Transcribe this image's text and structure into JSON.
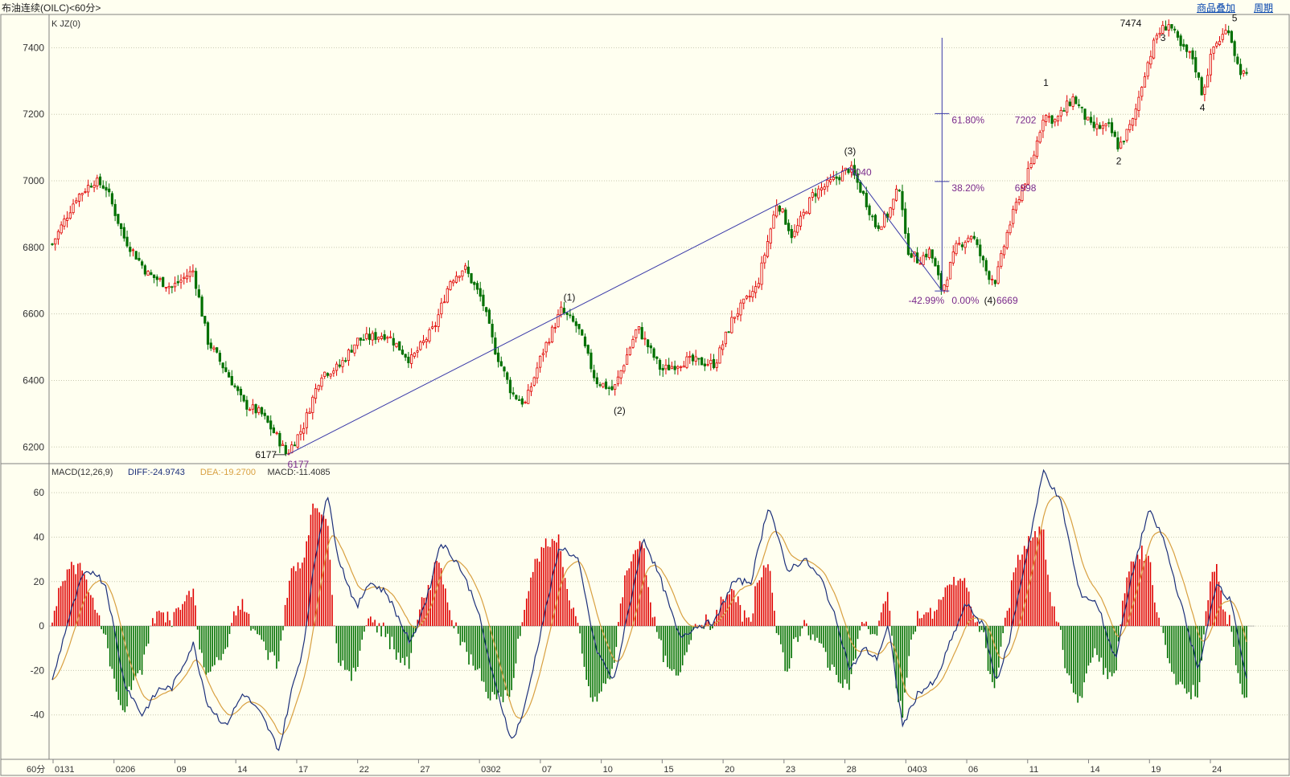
{
  "window": {
    "title": "布油连续(OILC)<60分>",
    "buttons": [
      "商品叠加",
      "周期"
    ]
  },
  "colors": {
    "bg": "#FFFFF0",
    "up": "#E00000",
    "down": "#007000",
    "diff": "#1B2F7A",
    "dea": "#D8A040",
    "annotation": "#7A2A8C",
    "grid": "#C8C8B0"
  },
  "chart_data": [
    {
      "type": "candlestick",
      "title": "K JZ(0)",
      "period_label": "60分",
      "ylim": [
        6150,
        7500
      ],
      "yticks": [
        6200,
        6400,
        6600,
        6800,
        7000,
        7200,
        7400
      ],
      "grid": true,
      "x_labels": [
        "0131",
        "0206",
        "09",
        "14",
        "17",
        "22",
        "27",
        "0302",
        "07",
        "10",
        "15",
        "20",
        "23",
        "28",
        "0403",
        "06",
        "11",
        "14",
        "19",
        "24"
      ],
      "price_path": [
        {
          "x": 0,
          "y": 6810
        },
        {
          "x": 0.02,
          "y": 6950
        },
        {
          "x": 0.035,
          "y": 7000
        },
        {
          "x": 0.045,
          "y": 6980
        },
        {
          "x": 0.06,
          "y": 6830
        },
        {
          "x": 0.08,
          "y": 6720
        },
        {
          "x": 0.1,
          "y": 6680
        },
        {
          "x": 0.118,
          "y": 6730
        },
        {
          "x": 0.13,
          "y": 6520
        },
        {
          "x": 0.15,
          "y": 6400
        },
        {
          "x": 0.16,
          "y": 6330
        },
        {
          "x": 0.175,
          "y": 6300
        },
        {
          "x": 0.19,
          "y": 6220
        },
        {
          "x": 0.196,
          "y": 6177
        },
        {
          "x": 0.21,
          "y": 6260
        },
        {
          "x": 0.225,
          "y": 6420
        },
        {
          "x": 0.24,
          "y": 6440
        },
        {
          "x": 0.255,
          "y": 6520
        },
        {
          "x": 0.28,
          "y": 6540
        },
        {
          "x": 0.3,
          "y": 6460
        },
        {
          "x": 0.32,
          "y": 6560
        },
        {
          "x": 0.333,
          "y": 6700
        },
        {
          "x": 0.345,
          "y": 6740
        },
        {
          "x": 0.36,
          "y": 6640
        },
        {
          "x": 0.37,
          "y": 6500
        },
        {
          "x": 0.385,
          "y": 6360
        },
        {
          "x": 0.396,
          "y": 6330
        },
        {
          "x": 0.41,
          "y": 6480
        },
        {
          "x": 0.426,
          "y": 6610
        },
        {
          "x": 0.44,
          "y": 6560
        },
        {
          "x": 0.455,
          "y": 6400
        },
        {
          "x": 0.47,
          "y": 6370
        },
        {
          "x": 0.49,
          "y": 6560
        },
        {
          "x": 0.51,
          "y": 6430
        },
        {
          "x": 0.53,
          "y": 6460
        },
        {
          "x": 0.555,
          "y": 6450
        },
        {
          "x": 0.57,
          "y": 6590
        },
        {
          "x": 0.59,
          "y": 6680
        },
        {
          "x": 0.607,
          "y": 6940
        },
        {
          "x": 0.62,
          "y": 6830
        },
        {
          "x": 0.637,
          "y": 6960
        },
        {
          "x": 0.65,
          "y": 6990
        },
        {
          "x": 0.668,
          "y": 7040
        },
        {
          "x": 0.68,
          "y": 6950
        },
        {
          "x": 0.69,
          "y": 6860
        },
        {
          "x": 0.7,
          "y": 6900
        },
        {
          "x": 0.71,
          "y": 6990
        },
        {
          "x": 0.715,
          "y": 6800
        },
        {
          "x": 0.725,
          "y": 6760
        },
        {
          "x": 0.735,
          "y": 6790
        },
        {
          "x": 0.745,
          "y": 6669
        },
        {
          "x": 0.757,
          "y": 6800
        },
        {
          "x": 0.77,
          "y": 6840
        },
        {
          "x": 0.783,
          "y": 6720
        },
        {
          "x": 0.79,
          "y": 6700
        },
        {
          "x": 0.8,
          "y": 6850
        },
        {
          "x": 0.81,
          "y": 6960
        },
        {
          "x": 0.82,
          "y": 7050
        },
        {
          "x": 0.83,
          "y": 7200
        },
        {
          "x": 0.84,
          "y": 7180
        },
        {
          "x": 0.855,
          "y": 7250
        },
        {
          "x": 0.87,
          "y": 7160
        },
        {
          "x": 0.885,
          "y": 7160
        },
        {
          "x": 0.893,
          "y": 7100
        },
        {
          "x": 0.905,
          "y": 7180
        },
        {
          "x": 0.915,
          "y": 7330
        },
        {
          "x": 0.925,
          "y": 7440
        },
        {
          "x": 0.935,
          "y": 7474
        },
        {
          "x": 0.945,
          "y": 7400
        },
        {
          "x": 0.955,
          "y": 7370
        },
        {
          "x": 0.963,
          "y": 7260
        },
        {
          "x": 0.972,
          "y": 7400
        },
        {
          "x": 0.985,
          "y": 7460
        },
        {
          "x": 0.993,
          "y": 7340
        },
        {
          "x": 1.0,
          "y": 7310
        }
      ],
      "annotations": [
        {
          "text": "6177",
          "x": 0.196,
          "y": 6177,
          "kind": "low-marker"
        },
        {
          "text": "6177",
          "x": 0.197,
          "y": 6177,
          "kind": "low-label"
        },
        {
          "text": "(1)",
          "x": 0.433,
          "y": 6640
        },
        {
          "text": "(2)",
          "x": 0.475,
          "y": 6300
        },
        {
          "text": "(3)",
          "x": 0.668,
          "y": 7080
        },
        {
          "text": "7040",
          "x": 0.668,
          "y": 7040,
          "kind": "high-label"
        },
        {
          "text": "-42.99%",
          "x": 0.72,
          "y": 6669
        },
        {
          "text": "0.00%",
          "x": 0.772,
          "y": 6669
        },
        {
          "text": "(4)",
          "x": 0.795,
          "y": 6669
        },
        {
          "text": "6669",
          "x": 0.804,
          "y": 6669
        },
        {
          "text": "38.20%",
          "x": 0.772,
          "y": 6998
        },
        {
          "text": "6998",
          "x": 0.814,
          "y": 6998
        },
        {
          "text": "61.80%",
          "x": 0.772,
          "y": 7202
        },
        {
          "text": "7202",
          "x": 0.814,
          "y": 7202
        },
        {
          "text": "1",
          "x": 0.832,
          "y": 7285
        },
        {
          "text": "2",
          "x": 0.893,
          "y": 7050
        },
        {
          "text": "3",
          "x": 0.93,
          "y": 7420
        },
        {
          "text": "7474",
          "x": 0.912,
          "y": 7474
        },
        {
          "text": "4",
          "x": 0.963,
          "y": 7210
        },
        {
          "text": "5",
          "x": 0.99,
          "y": 7480
        }
      ]
    },
    {
      "type": "macd",
      "title": "MACD(12,26,9)",
      "legend": [
        {
          "label": "DIFF:-24.9743",
          "color": "#1B2F7A"
        },
        {
          "label": "DEA:-19.2700",
          "color": "#D8A040"
        },
        {
          "label": "MACD:-11.4085",
          "color": "#333333"
        }
      ],
      "ylim": [
        -60,
        72
      ],
      "yticks": [
        -40,
        -20,
        0,
        20,
        40,
        60
      ],
      "diff_path": [
        {
          "x": 0,
          "y": -25
        },
        {
          "x": 0.012,
          "y": 0
        },
        {
          "x": 0.025,
          "y": 22
        },
        {
          "x": 0.035,
          "y": 25
        },
        {
          "x": 0.045,
          "y": 18
        },
        {
          "x": 0.06,
          "y": -25
        },
        {
          "x": 0.075,
          "y": -40
        },
        {
          "x": 0.09,
          "y": -28
        },
        {
          "x": 0.1,
          "y": -28
        },
        {
          "x": 0.118,
          "y": -8
        },
        {
          "x": 0.13,
          "y": -35
        },
        {
          "x": 0.145,
          "y": -45
        },
        {
          "x": 0.16,
          "y": -30
        },
        {
          "x": 0.175,
          "y": -40
        },
        {
          "x": 0.19,
          "y": -56
        },
        {
          "x": 0.2,
          "y": -30
        },
        {
          "x": 0.21,
          "y": -10
        },
        {
          "x": 0.22,
          "y": 30
        },
        {
          "x": 0.23,
          "y": 60
        },
        {
          "x": 0.24,
          "y": 30
        },
        {
          "x": 0.255,
          "y": 8
        },
        {
          "x": 0.265,
          "y": 20
        },
        {
          "x": 0.28,
          "y": 15
        },
        {
          "x": 0.3,
          "y": -8
        },
        {
          "x": 0.315,
          "y": 15
        },
        {
          "x": 0.325,
          "y": 38
        },
        {
          "x": 0.34,
          "y": 28
        },
        {
          "x": 0.355,
          "y": 10
        },
        {
          "x": 0.37,
          "y": -25
        },
        {
          "x": 0.385,
          "y": -52
        },
        {
          "x": 0.395,
          "y": -38
        },
        {
          "x": 0.41,
          "y": 0
        },
        {
          "x": 0.425,
          "y": 36
        },
        {
          "x": 0.44,
          "y": 30
        },
        {
          "x": 0.455,
          "y": -10
        },
        {
          "x": 0.47,
          "y": -25
        },
        {
          "x": 0.48,
          "y": 0
        },
        {
          "x": 0.495,
          "y": 40
        },
        {
          "x": 0.51,
          "y": 20
        },
        {
          "x": 0.525,
          "y": -5
        },
        {
          "x": 0.54,
          "y": 0
        },
        {
          "x": 0.555,
          "y": 2
        },
        {
          "x": 0.57,
          "y": 20
        },
        {
          "x": 0.585,
          "y": 20
        },
        {
          "x": 0.6,
          "y": 55
        },
        {
          "x": 0.615,
          "y": 25
        },
        {
          "x": 0.63,
          "y": 30
        },
        {
          "x": 0.645,
          "y": 20
        },
        {
          "x": 0.658,
          "y": 0
        },
        {
          "x": 0.668,
          "y": -20
        },
        {
          "x": 0.68,
          "y": -10
        },
        {
          "x": 0.69,
          "y": -15
        },
        {
          "x": 0.7,
          "y": 0
        },
        {
          "x": 0.712,
          "y": -45
        },
        {
          "x": 0.725,
          "y": -30
        },
        {
          "x": 0.74,
          "y": -25
        },
        {
          "x": 0.75,
          "y": -10
        },
        {
          "x": 0.765,
          "y": 10
        },
        {
          "x": 0.78,
          "y": 0
        },
        {
          "x": 0.79,
          "y": -25
        },
        {
          "x": 0.8,
          "y": -10
        },
        {
          "x": 0.815,
          "y": 30
        },
        {
          "x": 0.83,
          "y": 70
        },
        {
          "x": 0.845,
          "y": 55
        },
        {
          "x": 0.86,
          "y": 15
        },
        {
          "x": 0.875,
          "y": 10
        },
        {
          "x": 0.89,
          "y": -15
        },
        {
          "x": 0.905,
          "y": 25
        },
        {
          "x": 0.918,
          "y": 52
        },
        {
          "x": 0.93,
          "y": 40
        },
        {
          "x": 0.945,
          "y": 10
        },
        {
          "x": 0.96,
          "y": -20
        },
        {
          "x": 0.975,
          "y": 20
        },
        {
          "x": 0.988,
          "y": 10
        },
        {
          "x": 1.0,
          "y": -25
        }
      ]
    }
  ]
}
